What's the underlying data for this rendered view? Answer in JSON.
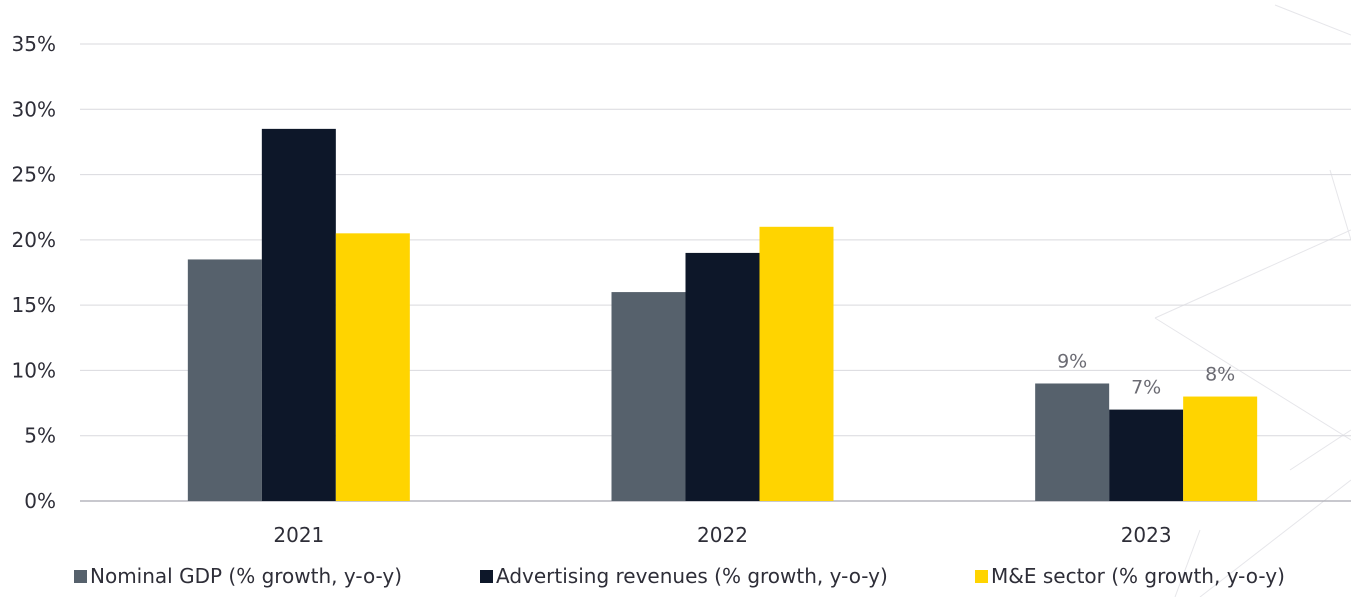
{
  "chart_data": {
    "type": "bar",
    "categories": [
      "2021",
      "2022",
      "2023"
    ],
    "series": [
      {
        "name": "Nominal GDP (% growth, y-o-y)",
        "values": [
          18.5,
          16,
          9
        ],
        "color": "#56616c"
      },
      {
        "name": "Advertising revenues (% growth, y-o-y)",
        "values": [
          28.5,
          19,
          7
        ],
        "color": "#0d1729"
      },
      {
        "name": "M&E sector (% growth, y-o-y)",
        "values": [
          20.5,
          21,
          8
        ],
        "color": "#ffd400"
      }
    ],
    "data_labels": [
      {
        "category": "2023",
        "series": 0,
        "text": "9%"
      },
      {
        "category": "2023",
        "series": 1,
        "text": "7%"
      },
      {
        "category": "2023",
        "series": 2,
        "text": "8%"
      }
    ],
    "ylim": [
      0,
      35
    ],
    "yticks": [
      "0%",
      "5%",
      "10%",
      "15%",
      "20%",
      "25%",
      "30%",
      "35%"
    ],
    "title": "",
    "xlabel": "",
    "ylabel": "",
    "grid": true,
    "legend": "bottom"
  }
}
